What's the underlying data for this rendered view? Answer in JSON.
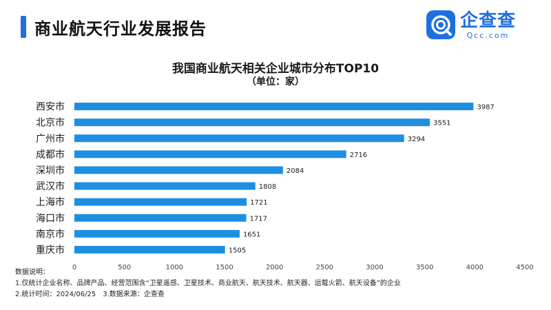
{
  "header": {
    "report_title": "商业航天行业发展报告",
    "brand_name": "企查查",
    "brand_domain": "Qcc.com"
  },
  "colors": {
    "accent": "#1f6fe0",
    "bar": "#1e8fe0"
  },
  "chart_data": {
    "type": "bar",
    "orientation": "horizontal",
    "title": "我国商业航天相关企业城市分布TOP10",
    "subtitle": "（单位：家）",
    "categories": [
      "西安市",
      "北京市",
      "广州市",
      "成都市",
      "深圳市",
      "武汉市",
      "上海市",
      "海口市",
      "南京市",
      "重庆市"
    ],
    "values": [
      3987,
      3551,
      3294,
      2716,
      2084,
      1808,
      1721,
      1717,
      1651,
      1505
    ],
    "value_labels": [
      "3987",
      "3551",
      "3294",
      "2716",
      "2084",
      "1808",
      "1721",
      "1717",
      "1651",
      "1505"
    ],
    "xlim": [
      0,
      4500
    ],
    "xticks": [
      0,
      500,
      1000,
      1500,
      2000,
      2500,
      3000,
      3500,
      4000,
      4500
    ],
    "xtick_labels": [
      "0",
      "500",
      "1000",
      "1500",
      "2000",
      "2500",
      "3000",
      "3500",
      "4000",
      "4500"
    ],
    "xlabel": "",
    "ylabel": "",
    "grid": false
  },
  "notes": {
    "heading": "数据说明：",
    "line1": "1.仅统计企业名称、品牌产品、经营范围含“卫星遥感、卫星技术、商业航天、航天技术、航天器、运载火箭、航天设备”的企业",
    "line2_a": "2.统计时间：2024/06/25",
    "line2_b": "3.数据来源：企查查"
  }
}
